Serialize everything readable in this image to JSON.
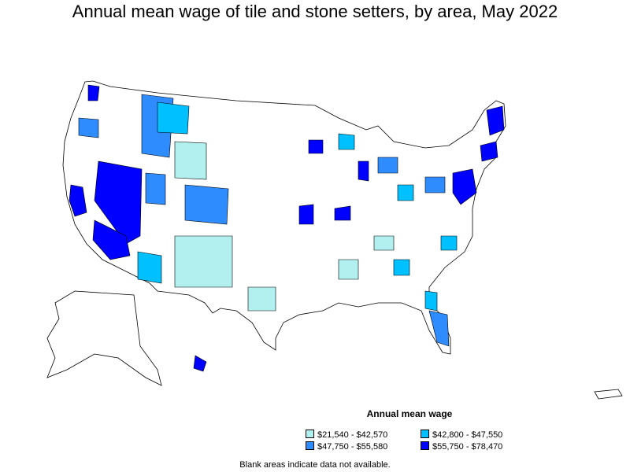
{
  "title": "Annual mean wage of tile and stone setters, by area, May 2022",
  "legend": {
    "title": "Annual mean wage",
    "items": [
      {
        "label": "$21,540 - $42,570",
        "color": "#b2f0f0"
      },
      {
        "label": "$42,800 - $47,550",
        "color": "#00c0ff"
      },
      {
        "label": "$47,750 - $55,580",
        "color": "#2f8cff"
      },
      {
        "label": "$55,750 - $78,470",
        "color": "#0000ff"
      }
    ]
  },
  "footnote": "Blank areas indicate data not available.",
  "colors": {
    "border": "#000000",
    "no_data": "#ffffff"
  }
}
